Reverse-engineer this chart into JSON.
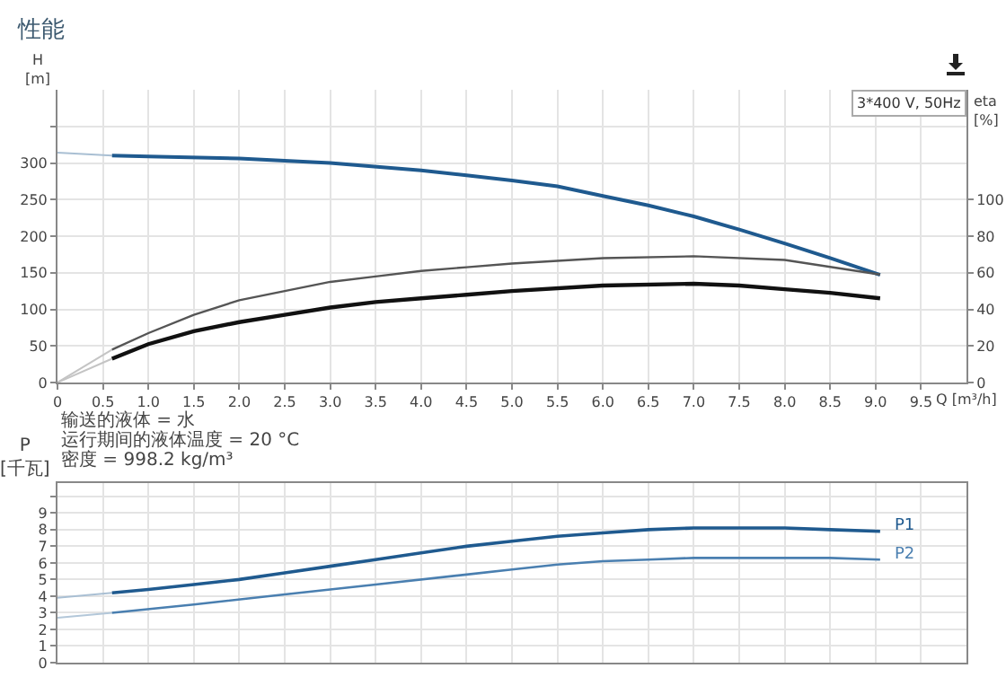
{
  "chart_data": [
    {
      "type": "line",
      "title": "性能",
      "xlabel": "Q [m³/h]",
      "ylabel": "H\n[m]",
      "y2label": "eta\n[%]",
      "xlim": [
        0,
        10
      ],
      "xticks": [
        0,
        0.5,
        {
          "value": 1,
          "label": "1.0"
        },
        1.5,
        {
          "value": 2,
          "label": "2.0"
        },
        2.5,
        {
          "value": 3,
          "label": "3.0"
        },
        3.5,
        {
          "value": 4,
          "label": "4.0"
        },
        4.5,
        {
          "value": 5,
          "label": "5.0"
        },
        5.5,
        {
          "value": 6,
          "label": "6.0"
        },
        6.5,
        {
          "value": 7,
          "label": "7.0"
        },
        7.5,
        {
          "value": 8,
          "label": "8.0"
        },
        8.5,
        {
          "value": 9,
          "label": "9.0"
        },
        9.5
      ],
      "ylim": [
        0,
        400
      ],
      "yticks": [
        0,
        50,
        100,
        150,
        200,
        250,
        300,
        {
          "value": 350,
          "label": null
        }
      ],
      "y2lim": [
        0,
        160
      ],
      "y2ticks": [
        0,
        20,
        40,
        60,
        80,
        100
      ],
      "grid": true,
      "series": [
        {
          "color": "#a9bfd3",
          "x": [
            0,
            0.6
          ],
          "values": [
            314,
            310
          ]
        },
        {
          "color": "#1f5a8f",
          "x": [
            0.6,
            1,
            2,
            3,
            4,
            4.5,
            5,
            5.5,
            6,
            6.5,
            7,
            7.5,
            8,
            8.5,
            9.05
          ],
          "values": [
            310,
            309,
            306,
            300,
            290,
            283,
            276,
            268,
            255,
            242,
            227,
            209,
            190,
            170,
            147
          ]
        },
        {
          "color": "#c4c4c4",
          "axis": "y2",
          "x": [
            0,
            0.6
          ],
          "values": [
            0,
            18
          ]
        },
        {
          "color": "#555555",
          "axis": "y2",
          "x": [
            0.6,
            1,
            1.5,
            2,
            2.5,
            3,
            3.5,
            4,
            4.5,
            5,
            6,
            7,
            8,
            9.05
          ],
          "values": [
            18,
            27,
            37,
            45,
            50,
            55,
            58,
            61,
            63,
            65,
            68,
            69,
            67,
            59
          ]
        },
        {
          "color": "#c4c4c4",
          "axis": "y2",
          "x": [
            0,
            0.6
          ],
          "values": [
            0,
            13
          ]
        },
        {
          "color": "#111111",
          "axis": "y2",
          "x": [
            0.6,
            1,
            1.5,
            2,
            2.5,
            3,
            3.5,
            4,
            4.5,
            5,
            6,
            7,
            7.5,
            8,
            8.5,
            9.05
          ],
          "values": [
            13,
            21,
            28,
            33,
            37,
            41,
            44,
            46,
            48,
            50,
            53,
            54,
            53,
            51,
            49,
            46
          ]
        }
      ],
      "annotations": [
        "3*400 V, 50Hz",
        "输送的液体 = 水",
        "运行期间的液体温度 = 20 °C",
        "密度 = 998.2 kg/m³"
      ]
    },
    {
      "type": "line",
      "ylabel": "P\n[千瓦]",
      "tick_labels": "y",
      "xlim": [
        0,
        10
      ],
      "xticks": [
        0,
        0.5,
        1,
        1.5,
        2,
        2.5,
        3,
        3.5,
        4,
        4.5,
        5,
        5.5,
        6,
        6.5,
        7,
        7.5,
        8,
        8.5,
        9,
        9.5
      ],
      "ylim": [
        0,
        10.8
      ],
      "yticks": [
        0,
        1,
        2,
        3,
        4,
        5,
        6,
        7,
        8,
        9,
        {
          "value": 10,
          "label": null
        }
      ],
      "grid": true,
      "series": [
        {
          "color": "#a9bfd3",
          "x": [
            0,
            0.6
          ],
          "values": [
            3.9,
            4.2
          ]
        },
        {
          "name": "P1",
          "color": "#1f5a8f",
          "x": [
            0.6,
            1,
            1.5,
            2,
            2.5,
            3,
            3.5,
            4,
            4.5,
            5,
            5.5,
            6,
            6.5,
            7,
            7.5,
            8,
            8.5,
            9.05
          ],
          "values": [
            4.2,
            4.4,
            4.7,
            5.0,
            5.4,
            5.8,
            6.2,
            6.6,
            7.0,
            7.3,
            7.6,
            7.8,
            8.0,
            8.1,
            8.1,
            8.1,
            8.0,
            7.9
          ]
        },
        {
          "color": "#b3c7d9",
          "x": [
            0,
            0.6
          ],
          "values": [
            2.7,
            3.0
          ]
        },
        {
          "name": "P2",
          "color": "#4a7fb0",
          "x": [
            0.6,
            1.5,
            2.5,
            3.5,
            4.5,
            5,
            5.5,
            6,
            6.5,
            7,
            7.5,
            8,
            8.5,
            9.05
          ],
          "values": [
            3.0,
            3.5,
            4.1,
            4.7,
            5.3,
            5.6,
            5.9,
            6.1,
            6.2,
            6.3,
            6.3,
            6.3,
            6.3,
            6.2
          ]
        }
      ]
    }
  ]
}
